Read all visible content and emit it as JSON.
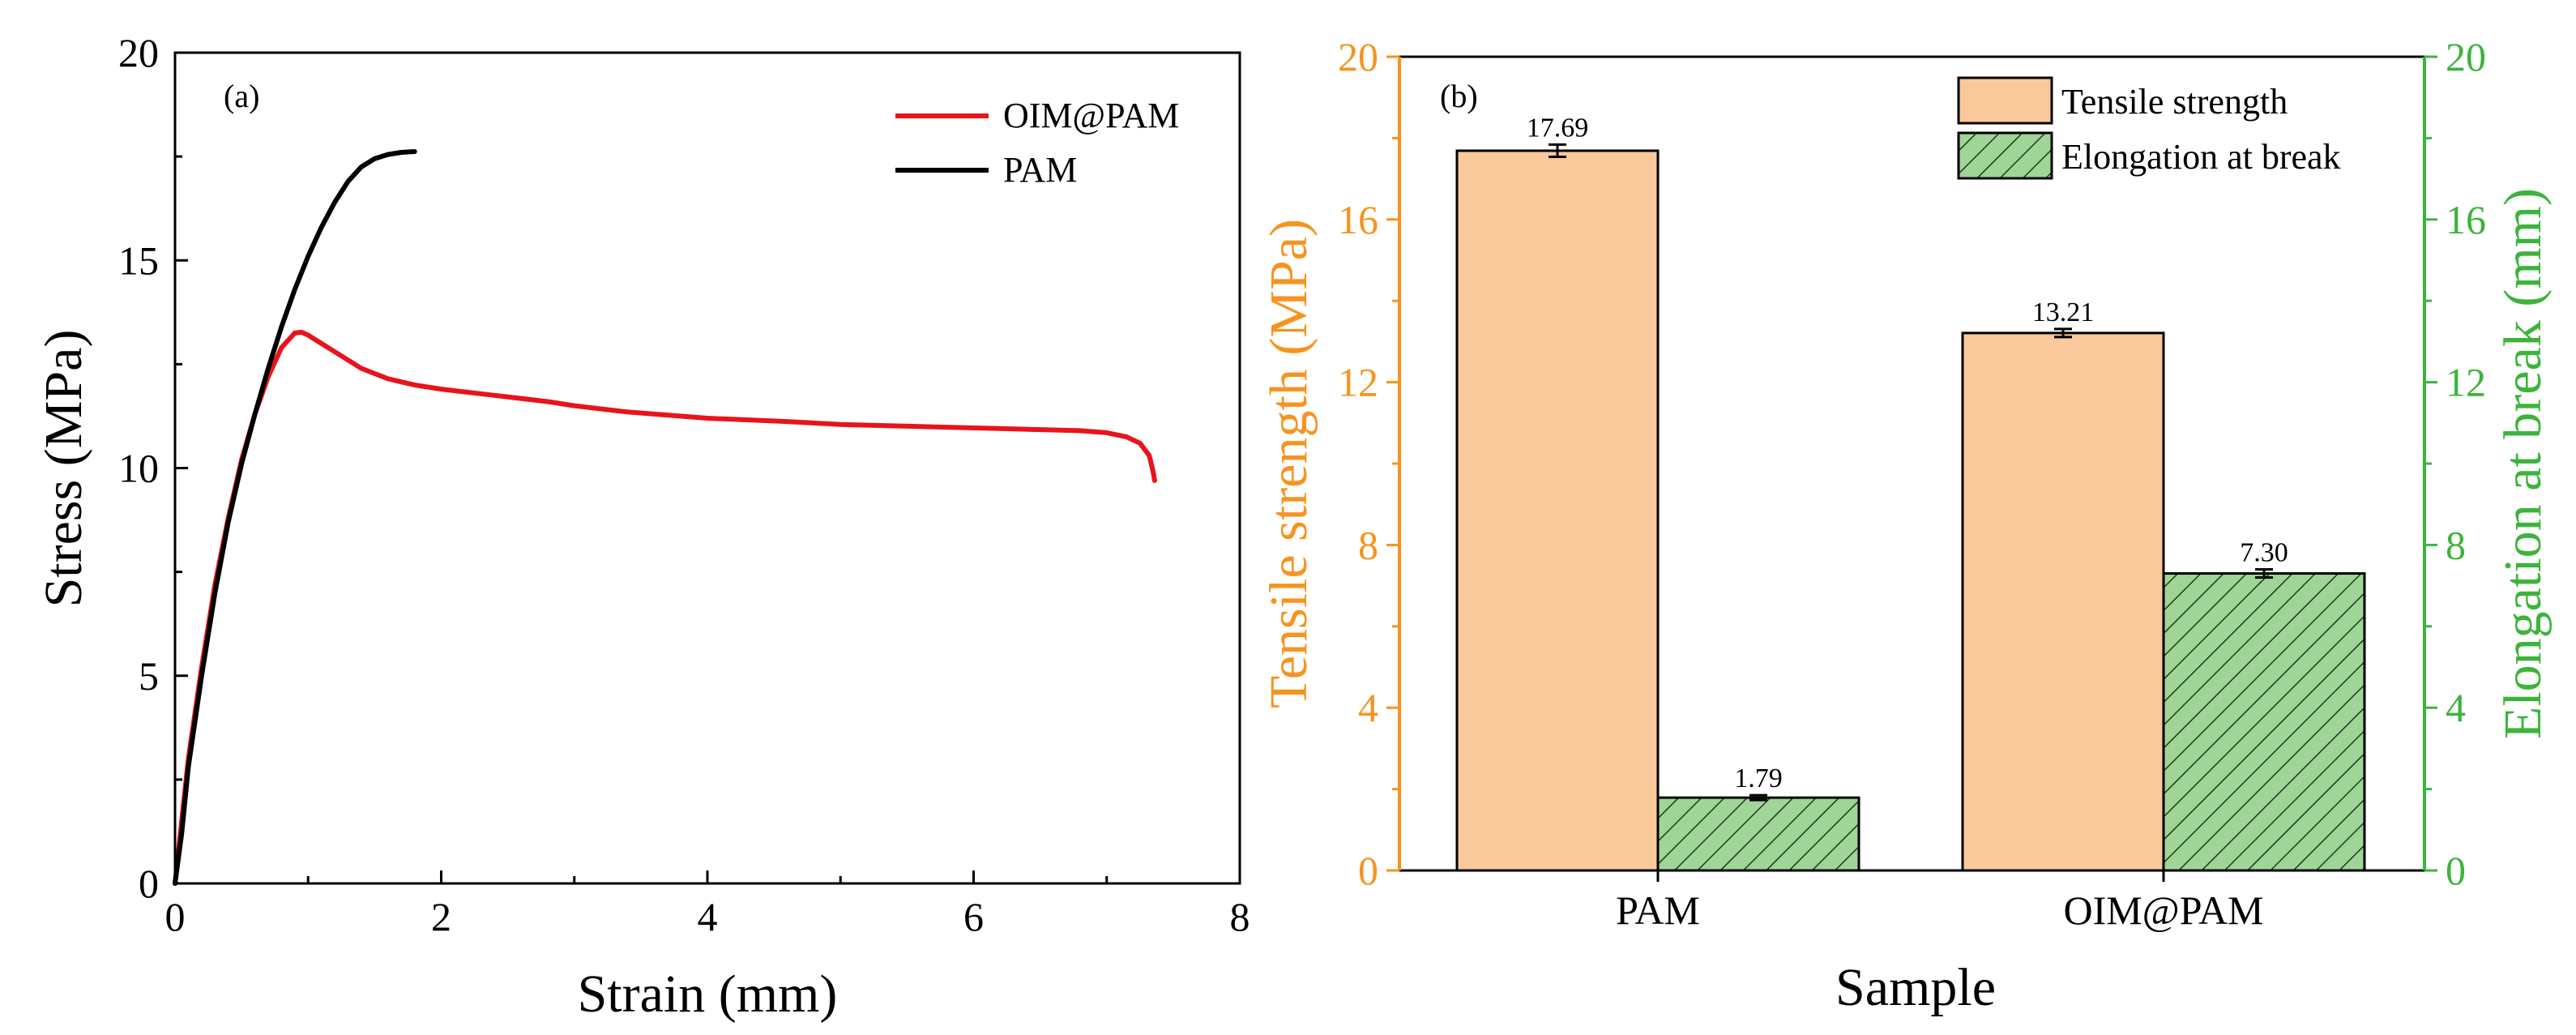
{
  "colors": {
    "oim_line": "#e8141b",
    "pam_line": "#000000",
    "tensile_fill": "#f9c89b",
    "elong_fill": "#9fd596",
    "tensile_axis": "#f7931e",
    "elong_axis": "#3cb43c"
  },
  "chart_data": [
    {
      "panel": "a",
      "panel_label": "(a)",
      "type": "line",
      "xlabel": "Strain (mm)",
      "ylabel": "Stress (MPa)",
      "xlim": [
        0,
        8
      ],
      "ylim": [
        0,
        20
      ],
      "xticks": [
        0,
        2,
        4,
        6,
        8
      ],
      "yticks": [
        0,
        5,
        10,
        15,
        20
      ],
      "legend": {
        "position": "top-right",
        "entries": [
          "OIM@PAM",
          "PAM"
        ]
      },
      "series": [
        {
          "name": "OIM@PAM",
          "color": "#e8141b",
          "points": [
            [
              0,
              0
            ],
            [
              0.05,
              1.5
            ],
            [
              0.1,
              3.0
            ],
            [
              0.2,
              5.2
            ],
            [
              0.3,
              7.2
            ],
            [
              0.4,
              8.8
            ],
            [
              0.5,
              10.2
            ],
            [
              0.6,
              11.3
            ],
            [
              0.7,
              12.2
            ],
            [
              0.8,
              12.9
            ],
            [
              0.9,
              13.25
            ],
            [
              0.95,
              13.27
            ],
            [
              1.0,
              13.2
            ],
            [
              1.1,
              13.0
            ],
            [
              1.2,
              12.8
            ],
            [
              1.4,
              12.4
            ],
            [
              1.6,
              12.15
            ],
            [
              1.8,
              12.0
            ],
            [
              2.0,
              11.9
            ],
            [
              2.4,
              11.75
            ],
            [
              2.8,
              11.6
            ],
            [
              3.0,
              11.5
            ],
            [
              3.4,
              11.35
            ],
            [
              4.0,
              11.2
            ],
            [
              4.6,
              11.12
            ],
            [
              5.0,
              11.05
            ],
            [
              5.6,
              11.0
            ],
            [
              6.2,
              10.95
            ],
            [
              6.8,
              10.9
            ],
            [
              7.0,
              10.85
            ],
            [
              7.15,
              10.75
            ],
            [
              7.25,
              10.6
            ],
            [
              7.32,
              10.3
            ],
            [
              7.35,
              9.9
            ],
            [
              7.36,
              9.7
            ]
          ]
        },
        {
          "name": "PAM",
          "color": "#000000",
          "points": [
            [
              0,
              0
            ],
            [
              0.05,
              1.2
            ],
            [
              0.1,
              2.8
            ],
            [
              0.2,
              5.0
            ],
            [
              0.3,
              7.0
            ],
            [
              0.4,
              8.7
            ],
            [
              0.5,
              10.1
            ],
            [
              0.6,
              11.3
            ],
            [
              0.7,
              12.4
            ],
            [
              0.8,
              13.4
            ],
            [
              0.9,
              14.3
            ],
            [
              1.0,
              15.1
            ],
            [
              1.1,
              15.8
            ],
            [
              1.2,
              16.4
            ],
            [
              1.3,
              16.9
            ],
            [
              1.4,
              17.25
            ],
            [
              1.5,
              17.45
            ],
            [
              1.6,
              17.55
            ],
            [
              1.7,
              17.6
            ],
            [
              1.8,
              17.62
            ]
          ]
        }
      ]
    },
    {
      "panel": "b",
      "panel_label": "(b)",
      "type": "bar",
      "xlabel": "Sample",
      "ylabel": "Tensile strength (MPa)",
      "ylabel_right": "Elongation at break (mm)",
      "categories": [
        "PAM",
        "OIM@PAM"
      ],
      "ylim": [
        0,
        20
      ],
      "ylim_right": [
        0,
        20
      ],
      "yticks": [
        0,
        4,
        8,
        12,
        16,
        20
      ],
      "legend": {
        "position": "top-right",
        "entries": [
          "Tensile strength",
          "Elongation at break"
        ]
      },
      "series": [
        {
          "name": "Tensile strength",
          "axis": "left",
          "values": [
            17.69,
            13.21
          ],
          "errors": [
            0.15,
            0.1
          ],
          "labels": [
            "17.69",
            "13.21"
          ]
        },
        {
          "name": "Elongation at break",
          "axis": "right",
          "values": [
            1.79,
            7.3
          ],
          "errors": [
            0.06,
            0.1
          ],
          "labels": [
            "1.79",
            "7.30"
          ]
        }
      ]
    }
  ]
}
